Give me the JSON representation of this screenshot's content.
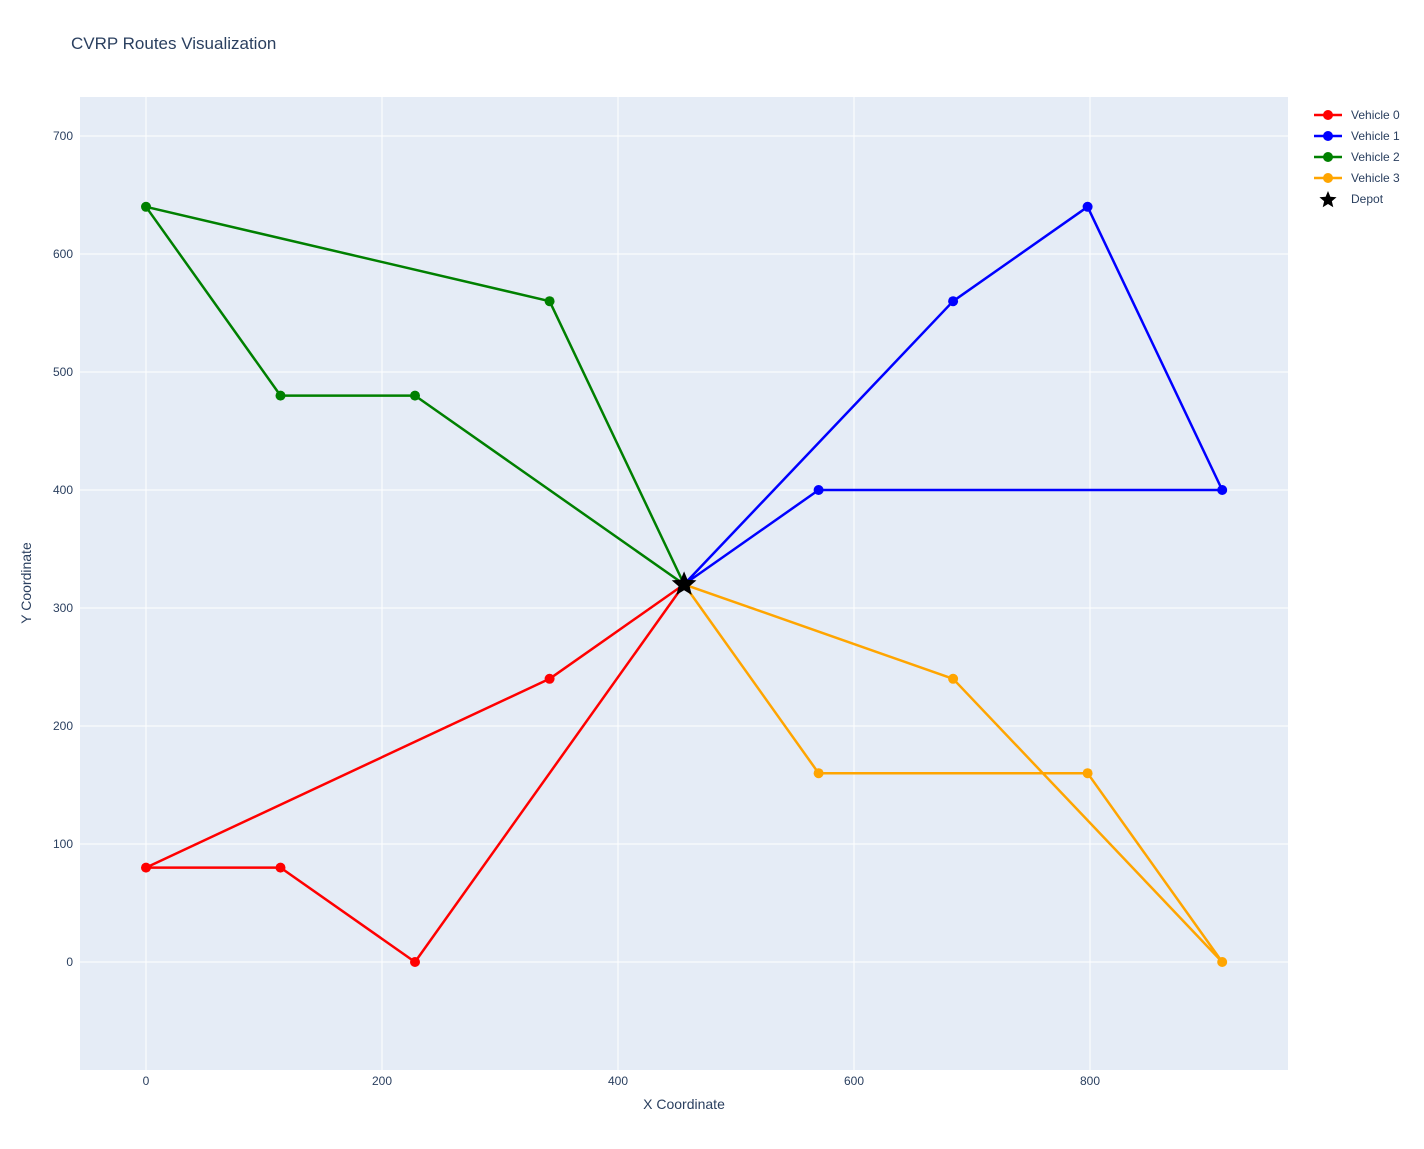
{
  "title": "CVRP Routes Visualization",
  "colors": {
    "background": "#ffffff",
    "plot_background": "#E5ECF6",
    "gridline": "#FFFFFF",
    "text": "#2A3F5F",
    "vehicle_0": "#FF0000",
    "vehicle_1": "#0000FF",
    "vehicle_2": "#008000",
    "vehicle_3": "#FFA500",
    "depot": "#000000"
  },
  "legend": {
    "items": [
      {
        "label": "Vehicle 0",
        "color": "#FF0000",
        "marker": "line-dot"
      },
      {
        "label": "Vehicle 1",
        "color": "#0000FF",
        "marker": "line-dot"
      },
      {
        "label": "Vehicle 2",
        "color": "#008000",
        "marker": "line-dot"
      },
      {
        "label": "Vehicle 3",
        "color": "#FFA500",
        "marker": "line-dot"
      },
      {
        "label": "Depot",
        "color": "#000000",
        "marker": "star"
      }
    ]
  },
  "chart_data": {
    "type": "line",
    "title": "CVRP Routes Visualization",
    "xlabel": "X Coordinate",
    "ylabel": "Y Coordinate",
    "x_ticks": [
      0,
      200,
      400,
      600,
      800
    ],
    "y_ticks": [
      0,
      100,
      200,
      300,
      400,
      500,
      600,
      700
    ],
    "xlim": [
      -56,
      968
    ],
    "ylim": [
      -92,
      733
    ],
    "grid": true,
    "legend_position": "right-top",
    "depot": {
      "name": "Depot",
      "x": 456,
      "y": 320,
      "color": "#000000",
      "marker": "star"
    },
    "series": [
      {
        "name": "Vehicle 0",
        "color": "#FF0000",
        "points": [
          [
            456,
            320
          ],
          [
            342,
            240
          ],
          [
            0,
            80
          ],
          [
            114,
            80
          ],
          [
            228,
            0
          ],
          [
            456,
            320
          ]
        ]
      },
      {
        "name": "Vehicle 1",
        "color": "#0000FF",
        "points": [
          [
            456,
            320
          ],
          [
            570,
            400
          ],
          [
            912,
            400
          ],
          [
            798,
            640
          ],
          [
            684,
            560
          ],
          [
            456,
            320
          ]
        ]
      },
      {
        "name": "Vehicle 2",
        "color": "#008000",
        "points": [
          [
            456,
            320
          ],
          [
            342,
            560
          ],
          [
            0,
            640
          ],
          [
            114,
            480
          ],
          [
            228,
            480
          ],
          [
            456,
            320
          ]
        ]
      },
      {
        "name": "Vehicle 3",
        "color": "#FFA500",
        "points": [
          [
            456,
            320
          ],
          [
            570,
            160
          ],
          [
            798,
            160
          ],
          [
            912,
            0
          ],
          [
            684,
            240
          ],
          [
            456,
            320
          ]
        ]
      }
    ]
  }
}
